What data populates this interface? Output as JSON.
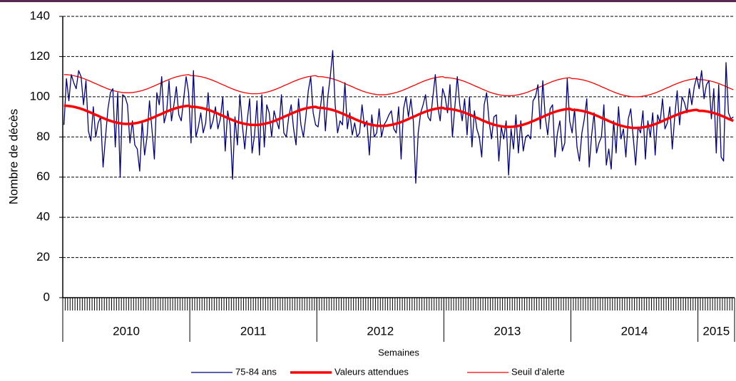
{
  "chart_data": {
    "type": "line",
    "y_label": "Nombre de décès",
    "x_label": "Semaines",
    "ylim": [
      0,
      140
    ],
    "yticks": [
      0,
      20,
      40,
      60,
      80,
      100,
      120,
      140
    ],
    "grid": true,
    "legend": "bottom",
    "x_groups": [
      {
        "label": "2010",
        "count": 52
      },
      {
        "label": "2011",
        "count": 52
      },
      {
        "label": "2012",
        "count": 52
      },
      {
        "label": "2013",
        "count": 52
      },
      {
        "label": "2014",
        "count": 52
      },
      {
        "label": "2015",
        "count": 15
      }
    ],
    "categories": [
      null,
      null,
      null,
      null,
      null,
      null,
      null,
      null,
      null,
      null,
      null,
      null,
      null,
      null,
      null,
      null,
      null,
      null,
      null,
      null,
      null,
      null,
      null,
      null,
      null,
      null,
      null,
      null,
      null,
      null,
      null,
      null,
      null,
      null,
      null,
      null,
      null,
      null,
      null,
      null,
      null,
      null,
      null,
      null,
      null,
      null,
      null,
      null,
      null,
      null,
      null,
      null,
      null,
      null,
      null,
      null,
      null,
      null,
      null,
      null,
      null,
      null,
      null,
      null,
      null,
      null,
      null,
      null,
      null,
      null,
      null,
      null,
      null,
      null,
      null,
      null,
      null,
      null,
      null,
      null,
      null,
      null,
      null,
      null,
      null,
      null,
      null,
      null,
      null,
      null,
      null,
      null,
      null,
      null,
      null,
      null,
      null,
      null,
      null,
      null,
      null,
      null,
      null,
      null,
      null,
      null,
      null,
      null,
      null,
      null,
      null,
      null,
      null,
      null,
      null,
      null,
      null,
      null,
      null,
      null,
      null,
      null,
      null,
      null,
      null,
      null,
      null,
      null,
      null,
      null,
      null,
      null,
      null,
      null,
      null,
      null,
      null,
      null,
      null,
      null,
      null,
      null,
      null,
      null,
      null,
      null,
      null,
      null,
      null,
      null,
      null,
      null,
      null,
      null,
      null,
      null,
      null,
      null,
      null,
      null,
      null,
      null,
      null,
      null,
      null,
      null,
      null,
      null,
      null,
      null,
      null,
      null,
      null,
      null,
      null,
      null,
      null,
      null,
      null,
      null,
      null,
      null,
      null,
      null,
      null,
      null,
      null,
      null,
      null,
      null,
      null,
      null,
      null,
      null,
      null,
      null,
      null,
      null,
      null,
      null,
      null,
      null,
      null,
      null,
      null,
      null,
      null,
      null,
      null,
      null,
      null,
      null,
      null,
      null,
      null,
      null,
      null,
      null,
      null,
      null,
      null,
      null,
      null,
      null,
      null,
      null,
      null,
      null,
      null,
      null,
      null,
      null,
      null,
      null,
      null,
      null,
      null,
      null,
      null,
      null,
      null,
      null,
      null,
      null,
      null,
      null,
      null,
      null,
      null,
      null,
      null,
      null,
      null,
      null,
      null,
      null,
      null,
      null,
      null,
      null,
      null,
      null,
      null,
      null,
      null,
      null,
      null,
      null,
      null,
      null,
      null,
      null,
      null,
      null,
      null
    ],
    "series": [
      {
        "name": "75-84 ans",
        "color": "#000080",
        "values": [
          86,
          109,
          98,
          111,
          107,
          104,
          113,
          110,
          96,
          108,
          83,
          78,
          95,
          80,
          87,
          90,
          65,
          80,
          94,
          102,
          104,
          75,
          102,
          60,
          101,
          100,
          96,
          77,
          88,
          76,
          74,
          63,
          88,
          71,
          80,
          98,
          84,
          69,
          102,
          96,
          110,
          87,
          92,
          108,
          88,
          96,
          105,
          91,
          88,
          99,
          110,
          102,
          77,
          113,
          80,
          85,
          92,
          82,
          87,
          102,
          84,
          88,
          95,
          84,
          89,
          100,
          73,
          93,
          86,
          59,
          90,
          76,
          101,
          86,
          74,
          88,
          99,
          72,
          81,
          98,
          71,
          101,
          75,
          96,
          92,
          80,
          93,
          88,
          84,
          101,
          82,
          80,
          90,
          96,
          84,
          76,
          99,
          86,
          80,
          90,
          103,
          110,
          92,
          86,
          85,
          95,
          105,
          83,
          100,
          110,
          123,
          96,
          82,
          88,
          86,
          107,
          84,
          92,
          81,
          87,
          80,
          82,
          96,
          85,
          88,
          71,
          91,
          80,
          82,
          94,
          80,
          86,
          88,
          91,
          93,
          84,
          82,
          95,
          69,
          94,
          100,
          90,
          99,
          88,
          57,
          82,
          92,
          96,
          101,
          90,
          88,
          100,
          111,
          95,
          88,
          104,
          100,
          92,
          106,
          80,
          95,
          110,
          96,
          88,
          99,
          81,
          100,
          75,
          93,
          84,
          80,
          70,
          96,
          102,
          88,
          79,
          90,
          91,
          68,
          85,
          79,
          88,
          61,
          84,
          74,
          91,
          72,
          88,
          73,
          80,
          81,
          79,
          98,
          100,
          106,
          84,
          108,
          90,
          81,
          94,
          96,
          70,
          82,
          88,
          73,
          77,
          109,
          88,
          82,
          94,
          75,
          68,
          82,
          89,
          99,
          65,
          81,
          92,
          72,
          77,
          80,
          96,
          66,
          74,
          64,
          88,
          72,
          95,
          79,
          84,
          70,
          89,
          94,
          80,
          66,
          85,
          82,
          93,
          69,
          88,
          80,
          92,
          71,
          91,
          87,
          99,
          84,
          87,
          95,
          74,
          90,
          103,
          86,
          100,
          97,
          92,
          104,
          96,
          105,
          110,
          104,
          113,
          99,
          106,
          108,
          89,
          104,
          72,
          106,
          70,
          68,
          117,
          92,
          89,
          90
        ]
      },
      {
        "name": "Valeurs attendues",
        "color": "#ff0000",
        "values": [
          95.5,
          95.5,
          95.4,
          95.2,
          95.0,
          94.7,
          94.4,
          94.0,
          93.6,
          93.1,
          92.6,
          92.1,
          91.5,
          91.0,
          90.5,
          89.9,
          89.4,
          88.9,
          88.4,
          88.0,
          87.6,
          87.3,
          87.0,
          86.8,
          86.6,
          86.5,
          86.5,
          86.5,
          86.6,
          86.8,
          87.0,
          87.3,
          87.6,
          88.0,
          88.4,
          88.9,
          89.4,
          89.9,
          90.5,
          91.0,
          91.5,
          92.1,
          92.6,
          93.1,
          93.6,
          94.0,
          94.4,
          94.7,
          95.0,
          95.2,
          95.4,
          95.5,
          95.0,
          95.0,
          94.9,
          94.7,
          94.5,
          94.2,
          93.9,
          93.5,
          93.1,
          92.6,
          92.1,
          91.6,
          91.0,
          90.5,
          90.0,
          89.4,
          88.9,
          88.4,
          87.9,
          87.5,
          87.1,
          86.8,
          86.5,
          86.3,
          86.1,
          86.0,
          86.0,
          86.0,
          86.1,
          86.3,
          86.5,
          86.8,
          87.1,
          87.5,
          87.9,
          88.4,
          88.9,
          89.4,
          90.0,
          90.5,
          91.0,
          91.6,
          92.1,
          92.6,
          93.1,
          93.5,
          93.9,
          94.2,
          94.5,
          94.7,
          94.9,
          95.0,
          94.5,
          94.5,
          94.4,
          94.2,
          94.0,
          93.7,
          93.4,
          93.0,
          92.6,
          92.1,
          91.6,
          91.1,
          90.5,
          90.0,
          89.5,
          88.9,
          88.4,
          87.9,
          87.4,
          87.0,
          86.6,
          86.3,
          86.0,
          85.8,
          85.6,
          85.5,
          85.5,
          85.5,
          85.6,
          85.8,
          86.0,
          86.3,
          86.6,
          87.0,
          87.4,
          87.9,
          88.4,
          88.9,
          89.5,
          90.0,
          90.5,
          91.1,
          91.6,
          92.1,
          92.6,
          93.0,
          93.4,
          93.7,
          94.0,
          94.2,
          94.4,
          94.5,
          94.0,
          94.0,
          93.9,
          93.7,
          93.5,
          93.2,
          92.9,
          92.5,
          92.1,
          91.6,
          91.1,
          90.6,
          90.0,
          89.5,
          89.0,
          88.4,
          87.9,
          87.4,
          86.9,
          86.5,
          86.1,
          85.8,
          85.5,
          85.3,
          85.1,
          85.0,
          85.0,
          85.0,
          85.1,
          85.3,
          85.5,
          85.8,
          86.1,
          86.5,
          86.9,
          87.4,
          87.9,
          88.4,
          89.0,
          89.5,
          90.0,
          90.6,
          91.1,
          91.6,
          92.1,
          92.5,
          92.9,
          93.2,
          93.5,
          93.7,
          93.9,
          94.0,
          93.5,
          93.5,
          93.4,
          93.2,
          93.0,
          92.7,
          92.4,
          92.0,
          91.6,
          91.1,
          90.6,
          90.1,
          89.5,
          89.0,
          88.5,
          87.9,
          87.4,
          86.9,
          86.4,
          86.0,
          85.6,
          85.3,
          85.0,
          84.8,
          84.6,
          84.5,
          84.5,
          84.5,
          84.6,
          84.8,
          85.0,
          85.3,
          85.6,
          86.0,
          86.4,
          86.9,
          87.4,
          87.9,
          88.5,
          89.0,
          89.5,
          90.1,
          90.6,
          91.1,
          91.6,
          92.0,
          92.4,
          92.7,
          93.0,
          93.2,
          93.4,
          93.5,
          93.0,
          93.0,
          92.9,
          92.7,
          92.5,
          92.2,
          91.9,
          91.5,
          91.1,
          90.6,
          90.1,
          89.6,
          89.0,
          88.5,
          88.0
        ]
      },
      {
        "name": "Seuil d'alerte",
        "color": "#ff0000",
        "values": [
          111.0,
          111.0,
          110.9,
          110.7,
          110.5,
          110.2,
          109.9,
          109.5,
          109.1,
          108.6,
          108.1,
          107.6,
          107.0,
          106.5,
          106.0,
          105.4,
          104.9,
          104.4,
          103.9,
          103.5,
          103.1,
          102.8,
          102.5,
          102.3,
          102.1,
          102.0,
          102.0,
          102.0,
          102.1,
          102.3,
          102.5,
          102.8,
          103.1,
          103.5,
          103.9,
          104.4,
          104.9,
          105.4,
          106.0,
          106.5,
          107.0,
          107.6,
          108.1,
          108.6,
          109.1,
          109.5,
          109.9,
          110.2,
          110.5,
          110.7,
          110.9,
          111.0,
          110.5,
          110.5,
          110.4,
          110.2,
          110.0,
          109.7,
          109.4,
          109.0,
          108.6,
          108.1,
          107.6,
          107.1,
          106.5,
          106.0,
          105.5,
          104.9,
          104.4,
          103.9,
          103.4,
          103.0,
          102.6,
          102.3,
          102.0,
          101.8,
          101.6,
          101.5,
          101.5,
          101.5,
          101.6,
          101.8,
          102.0,
          102.3,
          102.6,
          103.0,
          103.4,
          103.9,
          104.4,
          104.9,
          105.5,
          106.0,
          106.5,
          107.1,
          107.6,
          108.1,
          108.6,
          109.0,
          109.4,
          109.7,
          110.0,
          110.2,
          110.4,
          110.5,
          110.0,
          110.0,
          109.9,
          109.7,
          109.5,
          109.2,
          108.9,
          108.5,
          108.1,
          107.6,
          107.1,
          106.6,
          106.0,
          105.5,
          105.0,
          104.4,
          103.9,
          103.4,
          102.9,
          102.5,
          102.1,
          101.8,
          101.5,
          101.3,
          101.1,
          101.0,
          101.0,
          101.0,
          101.1,
          101.3,
          101.5,
          101.8,
          102.1,
          102.5,
          102.9,
          103.4,
          103.9,
          104.4,
          105.0,
          105.5,
          106.0,
          106.6,
          107.1,
          107.6,
          108.1,
          108.5,
          108.9,
          109.2,
          109.5,
          109.7,
          109.9,
          110.0,
          109.5,
          109.5,
          109.4,
          109.2,
          109.0,
          108.7,
          108.4,
          108.0,
          107.6,
          107.1,
          106.6,
          106.1,
          105.5,
          105.0,
          104.5,
          103.9,
          103.4,
          102.9,
          102.4,
          102.0,
          101.6,
          101.3,
          101.0,
          100.8,
          100.6,
          100.5,
          100.5,
          100.5,
          100.6,
          100.8,
          101.0,
          101.3,
          101.6,
          102.0,
          102.4,
          102.9,
          103.4,
          103.9,
          104.5,
          105.0,
          105.5,
          106.1,
          106.6,
          107.1,
          107.6,
          108.0,
          108.4,
          108.7,
          109.0,
          109.2,
          109.4,
          109.5,
          109.0,
          109.0,
          108.9,
          108.7,
          108.5,
          108.2,
          107.9,
          107.5,
          107.1,
          106.6,
          106.1,
          105.6,
          105.0,
          104.5,
          104.0,
          103.4,
          102.9,
          102.4,
          101.9,
          101.5,
          101.1,
          100.8,
          100.5,
          100.3,
          100.1,
          100.0,
          100.0,
          100.0,
          100.1,
          100.3,
          100.5,
          100.8,
          101.1,
          101.5,
          101.9,
          102.4,
          102.9,
          103.4,
          104.0,
          104.5,
          105.0,
          105.6,
          106.1,
          106.6,
          107.1,
          107.5,
          107.9,
          108.2,
          108.5,
          108.7,
          108.9,
          109.0,
          108.5,
          108.5,
          108.4,
          108.2,
          108.0,
          107.7,
          107.4,
          107.0,
          106.6,
          106.1,
          105.6,
          105.1,
          104.5,
          104.0,
          103.5
        ]
      }
    ]
  }
}
